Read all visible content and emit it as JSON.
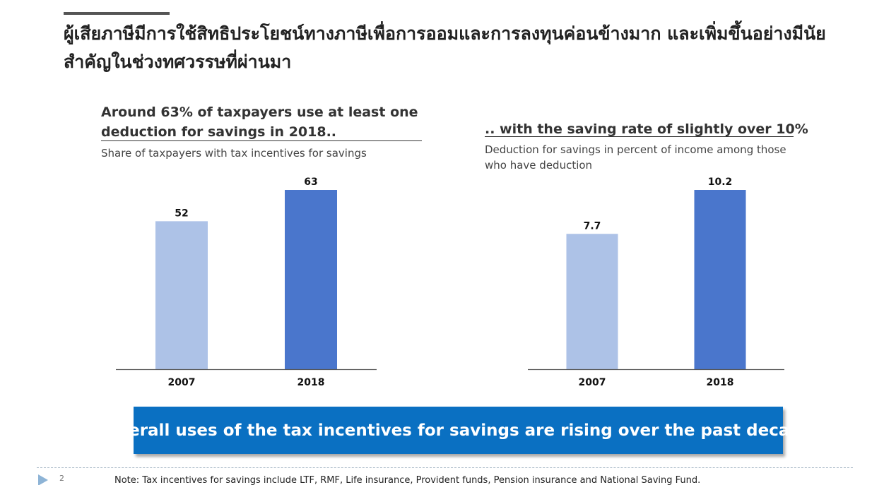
{
  "slide": {
    "title": "ผู้เสียภาษีมีการใช้สิทธิประโยชน์ทางภาษีเพื่อการออมและการลงทุนค่อนข้างมาก และเพิ่มขึ้นอย่างมีนัยสำคัญในช่วงทศวรรษที่ผ่านมา",
    "page_number": "2",
    "footer_note": "Note: Tax incentives for savings include LTF, RMF, Life insurance, Provident funds, Pension insurance and National Saving Fund.",
    "banner": "Overall uses of the tax incentives for savings are rising over the past decade"
  },
  "colors": {
    "bar_2007": "#adc2e7",
    "bar_2018": "#4a76cc",
    "banner": "#0a70c2"
  },
  "chart_data": [
    {
      "type": "bar",
      "title": "Around 63% of taxpayers use at least one deduction for savings in 2018..",
      "subtitle": "Share of taxpayers with tax incentives for savings",
      "categories": [
        "2007",
        "2018"
      ],
      "values": [
        52,
        63
      ],
      "value_labels": [
        "52",
        "63"
      ],
      "ylim": [
        0,
        70
      ],
      "grid": false,
      "legend": "none"
    },
    {
      "type": "bar",
      "title": ".. with the saving rate of slightly over 10%",
      "subtitle": "Deduction for savings in percent of income among those who have deduction",
      "categories": [
        "2007",
        "2018"
      ],
      "values": [
        7.7,
        10.2
      ],
      "value_labels": [
        "7.7",
        "10.2"
      ],
      "ylim": [
        0,
        11.4
      ],
      "grid": false,
      "legend": "none"
    }
  ]
}
